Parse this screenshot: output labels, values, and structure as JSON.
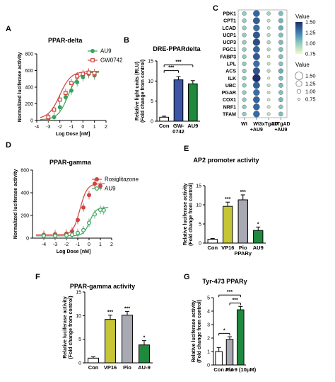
{
  "colors": {
    "ppar_au9": "#3aa35c",
    "ppar_gw": "#d0443f",
    "bar_con": "#ffffff",
    "bar_navy": "#3d55a5",
    "bar_green": "#1f8a3e",
    "bar_yellow": "#c5c536",
    "bar_gray": "#a9a9b3",
    "dot_high": "#1c2f6c",
    "dot_mid": "#3e7fb4",
    "dot_low": "#8fcfc0",
    "dot_min": "#f4f9c6"
  },
  "chart_data": [
    {
      "panel": "A",
      "type": "line",
      "title": "PPAR-delta",
      "xlabel": "Log Dose [nM]",
      "ylabel": "Normalized luciferase activity",
      "xlim": [
        -4,
        2
      ],
      "ylim": [
        0,
        800
      ],
      "xticks": [
        "-4",
        "-3",
        "-2",
        "-1",
        "0",
        "1",
        "2"
      ],
      "yticks": [
        "0",
        "200",
        "400",
        "600",
        "800"
      ],
      "legend_position": "top-right",
      "series": [
        {
          "name": "AU9",
          "color": "#3aa35c",
          "marker": "circle",
          "points": [
            [
              -3,
              20
            ],
            [
              -2.5,
              40
            ],
            [
              -2,
              160
            ],
            [
              -1.5,
              280
            ],
            [
              -1,
              360
            ],
            [
              -0.5,
              460
            ],
            [
              0,
              520
            ],
            [
              0.5,
              560
            ],
            [
              1,
              540
            ]
          ],
          "curve": {
            "bottom": 10,
            "top": 580,
            "logec50": -1.3,
            "hill": 1.0
          }
        },
        {
          "name": "GW0742",
          "color": "#d0443f",
          "marker": "square",
          "points": [
            [
              -3,
              40
            ],
            [
              -2.5,
              130
            ],
            [
              -2,
              250
            ],
            [
              -1.5,
              330
            ],
            [
              -1,
              450
            ],
            [
              -0.5,
              530
            ],
            [
              0,
              560
            ],
            [
              0.5,
              575
            ],
            [
              1,
              570
            ]
          ],
          "curve": {
            "bottom": 20,
            "top": 590,
            "logec50": -2.0,
            "hill": 0.9
          }
        }
      ]
    },
    {
      "panel": "B",
      "type": "bar",
      "title": "DRE-PPARdelta",
      "ylabel": "Relative light units (RLU)",
      "ylabel2": "(Fold change from control)",
      "categories": [
        "Con",
        "GW-0742",
        "AU9"
      ],
      "category_lines": [
        [
          "Con"
        ],
        [
          "GW-",
          "0742"
        ],
        [
          "AU9"
        ]
      ],
      "values": [
        1.0,
        10.3,
        9.3
      ],
      "errors": [
        0.25,
        0.8,
        0.8
      ],
      "colors": [
        "#ffffff",
        "#3d55a5",
        "#1f8a3e"
      ],
      "ylim": [
        0,
        15
      ],
      "yticks": [
        "0",
        "5",
        "10",
        "15"
      ],
      "significance": [
        {
          "from": 0,
          "to": 1,
          "label": "***",
          "y": 12.6
        },
        {
          "from": 0,
          "to": 2,
          "label": "***",
          "y": 14.0
        }
      ]
    },
    {
      "panel": "C",
      "type": "dot_heatmap",
      "rows": [
        "PDK1",
        "CPT1",
        "LCAD",
        "UCP1",
        "UCP3",
        "PGC1",
        "FABP3",
        "LPL",
        "ACS",
        "ILK",
        "UBC",
        "PGAR",
        "COX1",
        "NRF1",
        "TFAM"
      ],
      "columns": [
        "Wt",
        "Wt +AU9",
        "3xTgAD",
        "3xTgAD +AU9"
      ],
      "column_lines": [
        [
          "Wt"
        ],
        [
          "Wt",
          "+AU9"
        ],
        [
          "3xTgAD"
        ],
        [
          "3xTgAD",
          "+AU9"
        ]
      ],
      "value_legend_title": "Value",
      "color_scale": {
        "min": 0.75,
        "max": 1.5,
        "ticks": [
          "1.50",
          "1.25",
          "1.00",
          "0.75"
        ]
      },
      "size_legend": {
        "title": "Value",
        "values": [
          "1.50",
          "1.25",
          "1.00",
          "0.75"
        ]
      },
      "values": [
        [
          1.0,
          1.32,
          0.95,
          1.05
        ],
        [
          1.0,
          1.35,
          0.88,
          1.08
        ],
        [
          1.0,
          1.3,
          0.86,
          1.1
        ],
        [
          1.0,
          1.37,
          0.9,
          1.05
        ],
        [
          1.0,
          1.4,
          0.92,
          1.06
        ],
        [
          1.0,
          1.33,
          0.9,
          1.04
        ],
        [
          1.0,
          1.36,
          0.82,
          1.04
        ],
        [
          1.0,
          1.3,
          0.87,
          1.03
        ],
        [
          1.0,
          1.38,
          0.9,
          1.1
        ],
        [
          1.0,
          1.5,
          0.8,
          1.05
        ],
        [
          1.0,
          1.35,
          0.88,
          1.06
        ],
        [
          1.0,
          1.3,
          0.86,
          1.04
        ],
        [
          1.0,
          1.33,
          0.84,
          1.06
        ],
        [
          1.0,
          1.32,
          0.88,
          1.02
        ],
        [
          1.0,
          1.31,
          0.88,
          1.04
        ]
      ]
    },
    {
      "panel": "D",
      "type": "line",
      "title": "PPAR-gamma",
      "xlabel": "Log Dose [nM]",
      "ylabel": "Normalized luciferase activity",
      "xlim": [
        -5,
        2
      ],
      "ylim": [
        0,
        600
      ],
      "xticks": [
        "-4",
        "-3",
        "-2",
        "-1",
        "0",
        "1",
        "2"
      ],
      "yticks": [
        "0",
        "200",
        "400",
        "600"
      ],
      "legend_position": "top-right",
      "series": [
        {
          "name": "Rosiglitazone",
          "color": "#d0443f",
          "marker": "circle",
          "points": [
            [
              -4,
              30
            ],
            [
              -3,
              35
            ],
            [
              -2,
              40
            ],
            [
              -1.5,
              60
            ],
            [
              -1,
              160
            ],
            [
              -0.5,
              270
            ],
            [
              0,
              380
            ],
            [
              0.5,
              480
            ],
            [
              1,
              460
            ]
          ],
          "curve": {
            "bottom": 30,
            "top": 480,
            "logec50": -0.8,
            "hill": 1.4
          }
        },
        {
          "name": "AU9",
          "color": "#3aa35c",
          "marker": "circle",
          "points": [
            [
              -4,
              20
            ],
            [
              -3,
              20
            ],
            [
              -2,
              25
            ],
            [
              -1.5,
              30
            ],
            [
              -1,
              45
            ],
            [
              -0.5,
              70
            ],
            [
              0,
              135
            ],
            [
              0.5,
              210
            ],
            [
              1,
              250
            ],
            [
              1.3,
              245
            ]
          ],
          "curve": {
            "bottom": 20,
            "top": 270,
            "logec50": 0.05,
            "hill": 1.6
          }
        }
      ]
    },
    {
      "panel": "E",
      "type": "bar",
      "title": "AP2 promoter activity",
      "ylabel": "Relative luciferase activity",
      "ylabel2": "(Fold change from control)",
      "categories": [
        "Con",
        "VP16",
        "Pio",
        "AU9"
      ],
      "category_lines": [
        [
          "Con"
        ],
        [
          "VP16"
        ],
        [
          "Pio"
        ],
        [
          "AU9"
        ]
      ],
      "group_label": "PPARγ",
      "values": [
        1.0,
        9.6,
        11.3,
        3.3
      ],
      "errors": [
        0.2,
        1.1,
        1.3,
        0.9
      ],
      "colors": [
        "#ffffff",
        "#c5c536",
        "#a9a9b3",
        "#1f8a3e"
      ],
      "annotations": [
        "",
        "***",
        "***",
        "*"
      ],
      "ylim": [
        0,
        15
      ],
      "yticks": [
        "0",
        "5",
        "10",
        "15"
      ]
    },
    {
      "panel": "F",
      "type": "bar",
      "title": "PPAR-gamma activity",
      "ylabel": "Relative luciferase activity",
      "ylabel2": "(Fold change from control)",
      "categories": [
        "Con",
        "VP16",
        "Pio",
        "AU-9"
      ],
      "category_lines": [
        [
          "Con"
        ],
        [
          "VP16"
        ],
        [
          "Pio"
        ],
        [
          "AU-9"
        ]
      ],
      "values": [
        1.0,
        9.2,
        10.1,
        3.8
      ],
      "errors": [
        0.3,
        0.9,
        0.8,
        0.9
      ],
      "colors": [
        "#ffffff",
        "#c5c536",
        "#a9a9b3",
        "#1f8a3e"
      ],
      "annotations": [
        "",
        "***",
        "***",
        "*"
      ],
      "ylim": [
        0,
        15
      ],
      "yticks": [
        "0",
        "5",
        "10",
        "15"
      ]
    },
    {
      "panel": "G",
      "type": "bar",
      "title": "Tyr-473 PPARγ",
      "ylabel": "Relative luciferase activity",
      "ylabel2": "(Fold change from control)",
      "categories": [
        "Con",
        "Pio",
        "AU-9 (10μM)"
      ],
      "category_lines": [
        [
          "Con"
        ],
        [
          "Pio"
        ],
        [
          "AU-9 (10μM)"
        ]
      ],
      "values": [
        1.0,
        1.9,
        4.1
      ],
      "errors": [
        0.3,
        0.2,
        0.25
      ],
      "colors": [
        "#ffffff",
        "#a9a9b3",
        "#1f8a3e"
      ],
      "ylim": [
        0,
        5
      ],
      "yticks": [
        "0",
        "1",
        "2",
        "3",
        "4",
        "5"
      ],
      "significance": [
        {
          "from": 0,
          "to": 1,
          "label": "*",
          "y": 2.35
        },
        {
          "from": 1,
          "to": 2,
          "label": "***",
          "y": 4.6
        },
        {
          "from": 0,
          "to": 2,
          "label": "***",
          "y": 5.2
        }
      ]
    }
  ]
}
